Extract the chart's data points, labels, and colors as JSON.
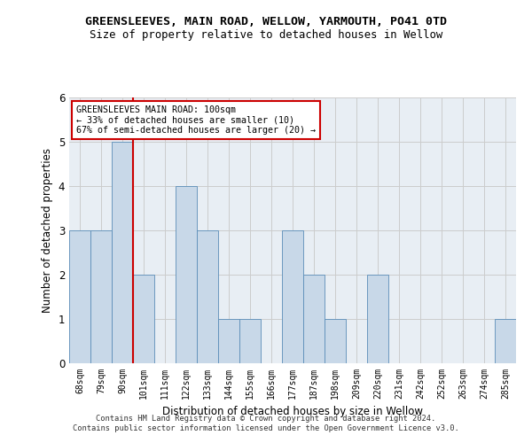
{
  "title": "GREENSLEEVES, MAIN ROAD, WELLOW, YARMOUTH, PO41 0TD",
  "subtitle": "Size of property relative to detached houses in Wellow",
  "xlabel": "Distribution of detached houses by size in Wellow",
  "ylabel": "Number of detached properties",
  "categories": [
    "68sqm",
    "79sqm",
    "90sqm",
    "101sqm",
    "111sqm",
    "122sqm",
    "133sqm",
    "144sqm",
    "155sqm",
    "166sqm",
    "177sqm",
    "187sqm",
    "198sqm",
    "209sqm",
    "220sqm",
    "231sqm",
    "242sqm",
    "252sqm",
    "263sqm",
    "274sqm",
    "285sqm"
  ],
  "values": [
    3,
    3,
    5,
    2,
    0,
    4,
    3,
    1,
    1,
    0,
    3,
    2,
    1,
    0,
    2,
    0,
    0,
    0,
    0,
    0,
    1
  ],
  "bar_color": "#c8d8e8",
  "bar_edge_color": "#5b8db8",
  "subject_line_color": "#cc0000",
  "annotation_text": "GREENSLEEVES MAIN ROAD: 100sqm\n← 33% of detached houses are smaller (10)\n67% of semi-detached houses are larger (20) →",
  "annotation_box_color": "#ffffff",
  "annotation_box_edge": "#cc0000",
  "ylim": [
    0,
    6
  ],
  "yticks": [
    0,
    1,
    2,
    3,
    4,
    5,
    6
  ],
  "grid_color": "#cccccc",
  "bg_color": "#e8eef4",
  "footer": "Contains HM Land Registry data © Crown copyright and database right 2024.\nContains public sector information licensed under the Open Government Licence v3.0."
}
